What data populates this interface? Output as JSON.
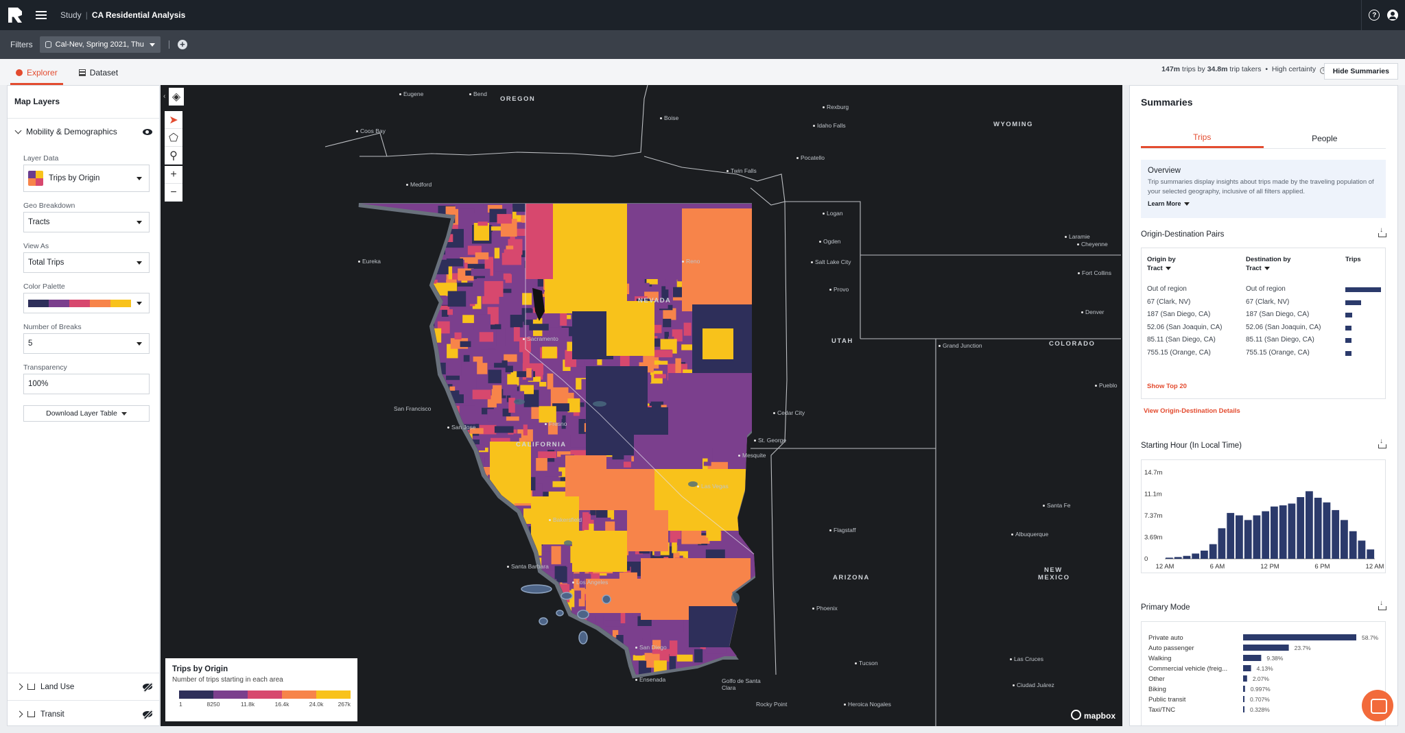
{
  "topbar": {
    "crumb_study": "Study",
    "crumb_separator": "|",
    "title": "CA Residential Analysis",
    "help_icon": "question-circle-icon",
    "user_icon": "user-circle-icon"
  },
  "filters": {
    "label": "Filters",
    "chip": "Cal-Nev, Spring 2021, Thu",
    "add_icon": "plus-circle-icon"
  },
  "tabs": {
    "explorer": "Explorer",
    "dataset": "Dataset"
  },
  "stats": {
    "trips": "147m",
    "trips_text": " trips by ",
    "takers": "34.8m",
    "takers_text": " trip takers",
    "bullet": "•",
    "certainty": "High certainty"
  },
  "hide_summaries": "Hide Summaries",
  "left_panel": {
    "title": "Map Layers",
    "section": "Mobility & Demographics",
    "layer_data_label": "Layer Data",
    "layer_data_value": "Trips by Origin",
    "geo_label": "Geo Breakdown",
    "geo_value": "Tracts",
    "view_label": "View As",
    "view_value": "Total Trips",
    "palette_label": "Color Palette",
    "breaks_label": "Number of Breaks",
    "breaks_value": "5",
    "transparency_label": "Transparency",
    "transparency_value": "100%",
    "download": "Download Layer Table",
    "land_use": "Land Use",
    "transit": "Transit"
  },
  "palette": [
    "#2e2f5a",
    "#7b3f8d",
    "#d7486e",
    "#f7844a",
    "#f8c21b"
  ],
  "map": {
    "states": [
      {
        "name": "OREGON",
        "id": "oregon"
      },
      {
        "name": "WYOMING",
        "id": "wyoming"
      },
      {
        "name": "NEVADA",
        "id": "nevada"
      },
      {
        "name": "UTAH",
        "id": "utah"
      },
      {
        "name": "COLORADO",
        "id": "colorado"
      },
      {
        "name": "CALIFORNIA",
        "id": "california"
      },
      {
        "name": "ARIZONA",
        "id": "arizona"
      },
      {
        "name": "NEW",
        "id": "newmexico1"
      },
      {
        "name": "MEXICO",
        "id": "newmexico2"
      }
    ],
    "cities": [
      "Eugene",
      "Bend",
      "Coos Bay",
      "Medford",
      "Boise",
      "Rexburg",
      "Idaho Falls",
      "Pocatello",
      "Twin Falls",
      "Logan",
      "Ogden",
      "Salt Lake City",
      "Provo",
      "Eureka",
      "Reno",
      "Laramie",
      "Cheyenne",
      "Fort Collins",
      "Denver",
      "Grand Junction",
      "Pueblo",
      "Cedar City",
      "St. George",
      "Mesquite",
      "Sacramento",
      "San Francisco",
      "San Jose",
      "Fresno",
      "Bakersfield",
      "Las Vegas",
      "Santa Barbara",
      "Los Angeles",
      "San Diego",
      "Flagstaff",
      "Santa Fe",
      "Albuquerque",
      "Phoenix",
      "Tucson",
      "Las Cruces",
      "Ensenada",
      "Golfo de Santa Clara",
      "Ciudad Juárez",
      "Rocky Point",
      "Heroica Nogales"
    ],
    "legend_title": "Trips by Origin",
    "legend_sub": "Number of trips starting in each area",
    "legend_ticks": [
      "1",
      "8250",
      "11.8k",
      "16.4k",
      "24.0k",
      "267k"
    ],
    "attribution": "mapbox",
    "tools": [
      "layers-icon",
      "pointer-icon",
      "polygon-icon",
      "search-icon",
      "zoom-in-icon",
      "zoom-out-icon"
    ]
  },
  "summaries": {
    "title": "Summaries",
    "tab_trips": "Trips",
    "tab_people": "People",
    "overview_title": "Overview",
    "overview_text": "Trip summaries display insights about trips made by the traveling population of your selected geography, inclusive of all filters applied.",
    "learn_more": "Learn More",
    "od_title": "Origin-Destination Pairs",
    "od_headers": {
      "origin": "Origin by",
      "origin2": "Tract",
      "dest": "Destination by",
      "dest2": "Tract",
      "trips": "Trips"
    },
    "od_rows": [
      {
        "origin": "Out of region",
        "dest": "Out of region",
        "share": 1.0
      },
      {
        "origin": "67 (Clark, NV)",
        "dest": "67 (Clark, NV)",
        "share": 0.45
      },
      {
        "origin": "187 (San Diego, CA)",
        "dest": "187 (San Diego, CA)",
        "share": 0.2
      },
      {
        "origin": "52.06 (San Joaquin, CA)",
        "dest": "52.06 (San Joaquin, CA)",
        "share": 0.18
      },
      {
        "origin": "85.11 (San Diego, CA)",
        "dest": "85.11 (San Diego, CA)",
        "share": 0.18
      },
      {
        "origin": "755.15 (Orange, CA)",
        "dest": "755.15 (Orange, CA)",
        "share": 0.18
      }
    ],
    "show_top": "Show Top 20",
    "view_od": "View Origin-Destination Details",
    "hour_title": "Starting Hour (In Local Time)",
    "mode_title": "Primary Mode"
  },
  "chart_data": [
    {
      "type": "bar",
      "title": "Starting Hour (In Local Time)",
      "x": [
        0,
        1,
        2,
        3,
        4,
        5,
        6,
        7,
        8,
        9,
        10,
        11,
        12,
        13,
        14,
        15,
        16,
        17,
        18,
        19,
        20,
        21,
        22,
        23
      ],
      "values": [
        0.2,
        0.3,
        0.5,
        0.9,
        1.4,
        2.5,
        5.2,
        7.8,
        7.4,
        6.6,
        7.4,
        8.1,
        8.9,
        9.1,
        9.4,
        10.5,
        11.5,
        10.4,
        9.6,
        8.3,
        6.6,
        4.7,
        3.1,
        1.6
      ],
      "xticks": [
        "12 AM",
        "6 AM",
        "12 PM",
        "6 PM",
        "12 AM"
      ],
      "yticks": [
        "0",
        "3.69m",
        "7.37m",
        "11.1m",
        "14.7m"
      ],
      "ylim": [
        0,
        14.7
      ],
      "color": "#2b3a6b"
    },
    {
      "type": "bar",
      "orientation": "horizontal",
      "title": "Primary Mode",
      "categories": [
        "Private auto",
        "Auto passenger",
        "Walking",
        "Commercial vehicle (freig...",
        "Other",
        "Biking",
        "Public transit",
        "Taxi/TNC"
      ],
      "values": [
        58.7,
        23.7,
        9.38,
        4.13,
        2.07,
        0.997,
        0.707,
        0.328
      ],
      "labels": [
        "58.7%",
        "23.7%",
        "9.38%",
        "4.13%",
        "2.07%",
        "0.997%",
        "0.707%",
        "0.328%"
      ],
      "color": "#2b3a6b"
    }
  ]
}
